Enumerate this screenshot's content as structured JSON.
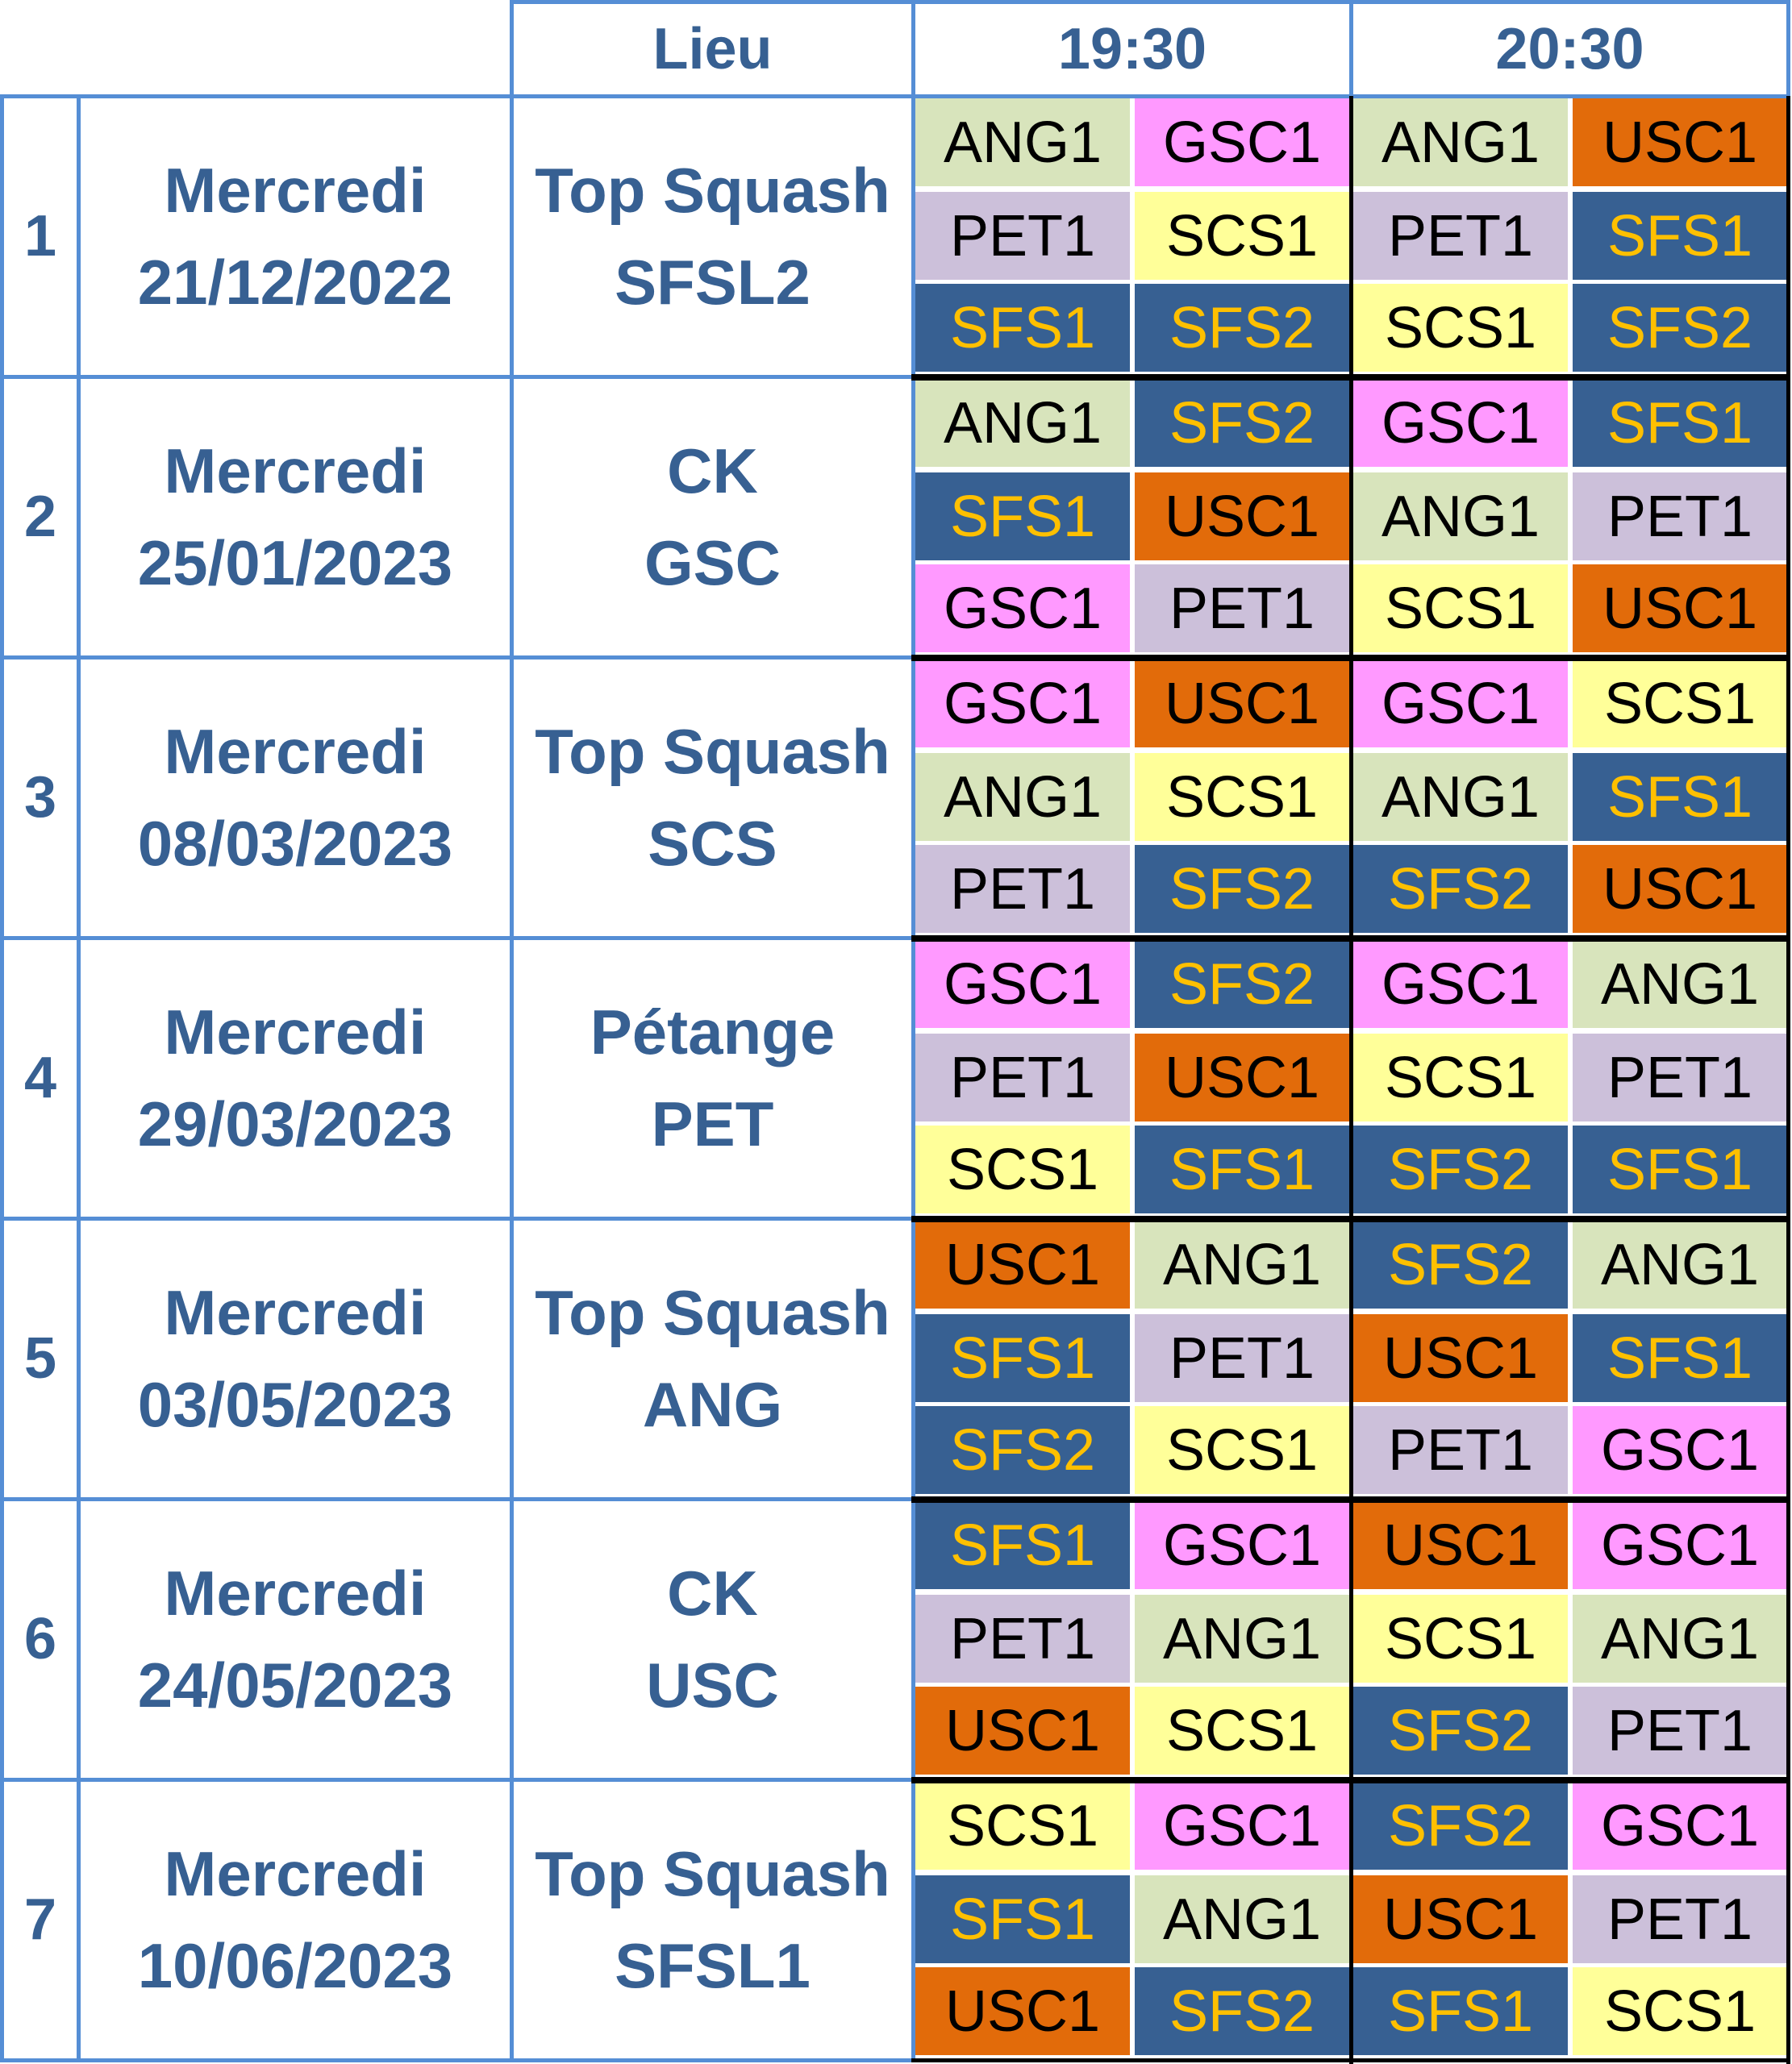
{
  "header": {
    "venue_label": "Lieu",
    "slots": [
      "19:30",
      "20:30"
    ]
  },
  "team_colors": {
    "ANG1": {
      "bg": "#d8e4bc",
      "fg": "#000000"
    },
    "GSC1": {
      "bg": "#ff99ff",
      "fg": "#000000"
    },
    "USC1": {
      "bg": "#e26b0a",
      "fg": "#000000"
    },
    "PET1": {
      "bg": "#ccc0da",
      "fg": "#000000"
    },
    "SCS1": {
      "bg": "#ffff99",
      "fg": "#000000"
    },
    "SFS1": {
      "bg": "#376092",
      "fg": "#ffc000"
    },
    "SFS2": {
      "bg": "#376092",
      "fg": "#ffc000"
    }
  },
  "accent_color": "#376092",
  "border_color": "#558ed5",
  "rounds": [
    {
      "num": "1",
      "day": "Mercredi",
      "date": "21/12/2022",
      "venue": [
        "Top Squash",
        "SFSL2"
      ],
      "s1930": [
        "ANG1",
        "GSC1",
        "PET1",
        "SCS1",
        "SFS1",
        "SFS2"
      ],
      "s2030": [
        "ANG1",
        "USC1",
        "PET1",
        "SFS1",
        "SCS1",
        "SFS2"
      ]
    },
    {
      "num": "2",
      "day": "Mercredi",
      "date": "25/01/2023",
      "venue": [
        "CK",
        "GSC"
      ],
      "s1930": [
        "ANG1",
        "SFS2",
        "SFS1",
        "USC1",
        "GSC1",
        "PET1"
      ],
      "s2030": [
        "GSC1",
        "SFS1",
        "ANG1",
        "PET1",
        "SCS1",
        "USC1"
      ]
    },
    {
      "num": "3",
      "day": "Mercredi",
      "date": "08/03/2023",
      "venue": [
        "Top Squash",
        "SCS"
      ],
      "s1930": [
        "GSC1",
        "USC1",
        "ANG1",
        "SCS1",
        "PET1",
        "SFS2"
      ],
      "s2030": [
        "GSC1",
        "SCS1",
        "ANG1",
        "SFS1",
        "SFS2",
        "USC1"
      ]
    },
    {
      "num": "4",
      "day": "Mercredi",
      "date": "29/03/2023",
      "venue": [
        "Pétange",
        "PET"
      ],
      "s1930": [
        "GSC1",
        "SFS2",
        "PET1",
        "USC1",
        "SCS1",
        "SFS1"
      ],
      "s2030": [
        "GSC1",
        "ANG1",
        "SCS1",
        "PET1",
        "SFS2",
        "SFS1"
      ]
    },
    {
      "num": "5",
      "day": "Mercredi",
      "date": "03/05/2023",
      "venue": [
        "Top Squash",
        "ANG"
      ],
      "s1930": [
        "USC1",
        "ANG1",
        "SFS1",
        "PET1",
        "SFS2",
        "SCS1"
      ],
      "s2030": [
        "SFS2",
        "ANG1",
        "USC1",
        "SFS1",
        "PET1",
        "GSC1"
      ]
    },
    {
      "num": "6",
      "day": "Mercredi",
      "date": "24/05/2023",
      "venue": [
        "CK",
        "USC"
      ],
      "s1930": [
        "SFS1",
        "GSC1",
        "PET1",
        "ANG1",
        "USC1",
        "SCS1"
      ],
      "s2030": [
        "USC1",
        "GSC1",
        "SCS1",
        "ANG1",
        "SFS2",
        "PET1"
      ]
    },
    {
      "num": "7",
      "day": "Mercredi",
      "date": "10/06/2023",
      "venue": [
        "Top Squash",
        "SFSL1"
      ],
      "s1930": [
        "SCS1",
        "GSC1",
        "SFS1",
        "ANG1",
        "USC1",
        "SFS2"
      ],
      "s2030": [
        "SFS2",
        "GSC1",
        "USC1",
        "PET1",
        "SFS1",
        "SCS1"
      ]
    }
  ]
}
